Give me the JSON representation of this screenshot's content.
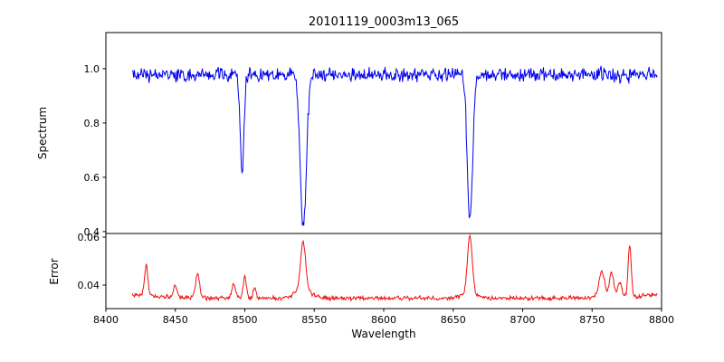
{
  "chart_data": {
    "type": "line",
    "title": "20101119_0003m13_065",
    "xlabel": "Wavelength",
    "x_axis": {
      "range": [
        8400,
        8800
      ],
      "data_range": [
        8419,
        8797
      ],
      "ticks": [
        {
          "value": 8400,
          "label": "8400"
        },
        {
          "value": 8450,
          "label": "8450"
        },
        {
          "value": 8500,
          "label": "8500"
        },
        {
          "value": 8550,
          "label": "8550"
        },
        {
          "value": 8600,
          "label": "8600"
        },
        {
          "value": 8650,
          "label": "8650"
        },
        {
          "value": 8700,
          "label": "8700"
        },
        {
          "value": 8750,
          "label": "8750"
        },
        {
          "value": 8800,
          "label": "8800"
        }
      ]
    },
    "panels": [
      {
        "name": "spectrum",
        "ylabel": "Spectrum",
        "color": "#0000ee",
        "ylim": [
          0.393,
          1.133
        ],
        "yticks": [
          {
            "value": 0.4,
            "label": "0.4"
          },
          {
            "value": 0.6,
            "label": "0.6"
          },
          {
            "value": 0.8,
            "label": "0.8"
          },
          {
            "value": 1.0,
            "label": "1.0"
          }
        ],
        "baseline": 0.978,
        "noise_scale": 0.85,
        "absorption_lines": [
          {
            "center": 8498.0,
            "depth": 0.37,
            "sigma": 1.3
          },
          {
            "center": 8542.1,
            "depth": 0.57,
            "sigma": 2.2
          },
          {
            "center": 8662.1,
            "depth": 0.53,
            "sigma": 1.9
          }
        ]
      },
      {
        "name": "error",
        "ylabel": "Error",
        "color": "#ee1111",
        "ylim": [
          0.0302,
          0.0615
        ],
        "yticks": [
          {
            "value": 0.04,
            "label": "0.04"
          },
          {
            "value": 0.06,
            "label": "0.06"
          }
        ],
        "baseline": 0.0345,
        "noise_amplitude": 0.0011,
        "peaks": [
          {
            "center": 8429,
            "height": 0.0125,
            "sigma": 1.2
          },
          {
            "center": 8450,
            "height": 0.005,
            "sigma": 1.2
          },
          {
            "center": 8466,
            "height": 0.01,
            "sigma": 1.4
          },
          {
            "center": 8492,
            "height": 0.0065,
            "sigma": 1.2
          },
          {
            "center": 8500,
            "height": 0.0085,
            "sigma": 1.2
          },
          {
            "center": 8507,
            "height": 0.0045,
            "sigma": 1.0
          },
          {
            "center": 8542,
            "height": 0.02,
            "sigma": 1.8
          },
          {
            "center": 8542,
            "height": 0.0035,
            "sigma": 6.0
          },
          {
            "center": 8662,
            "height": 0.0235,
            "sigma": 1.6
          },
          {
            "center": 8662,
            "height": 0.003,
            "sigma": 5.0
          },
          {
            "center": 8757,
            "height": 0.011,
            "sigma": 2.0
          },
          {
            "center": 8764,
            "height": 0.0105,
            "sigma": 1.5
          },
          {
            "center": 8770,
            "height": 0.006,
            "sigma": 1.5
          },
          {
            "center": 8777,
            "height": 0.022,
            "sigma": 1.1
          }
        ],
        "edge_rise": {
          "amplitude": 0.0015,
          "scale": 25
        }
      }
    ]
  }
}
